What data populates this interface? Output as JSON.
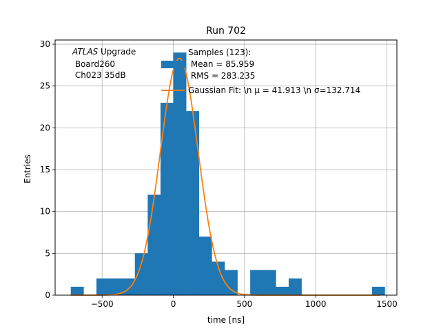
{
  "chart_data": {
    "type": "bar",
    "title": "Run 702",
    "xlabel": "time [ns]",
    "ylabel": "Entries",
    "xlim": [
      -830,
      1570
    ],
    "ylim": [
      0,
      30.5
    ],
    "xticks": [
      -500,
      0,
      500,
      1000,
      1500
    ],
    "yticks": [
      0,
      5,
      10,
      15,
      20,
      25,
      30
    ],
    "xtick_labels": [
      "−500",
      "0",
      "500",
      "1000",
      "1500"
    ],
    "ytick_labels": [
      "0",
      "5",
      "10",
      "15",
      "20",
      "25",
      "30"
    ],
    "grid": true,
    "bin_edges": [
      -720,
      -630,
      -540,
      -450,
      -360,
      -270,
      -180,
      -90,
      0,
      90,
      180,
      270,
      360,
      450,
      540,
      630,
      720,
      810,
      900,
      990,
      1080,
      1170,
      1260,
      1350,
      1440
    ],
    "hist_values": [
      1,
      0,
      2,
      2,
      2,
      5,
      12,
      23,
      29,
      22,
      7,
      4,
      3,
      0,
      3,
      3,
      1,
      2,
      0,
      0,
      0,
      0,
      0,
      0
    ],
    "extra_bins": [
      [
        1395,
        1485,
        1
      ]
    ],
    "fit_curve": {
      "amplitude": 28.3,
      "mean": 41.913,
      "sigma": 132.714
    },
    "legend": {
      "placement": "top-right",
      "hist_label_lines": [
        "Samples (123):",
        " Mean = 85.959",
        " RMS = 283.235"
      ],
      "fit_label": "Gaussian Fit: \\n μ = 41.913 \\n σ=132.714"
    },
    "annotation_lines": [
      "ATLAS Upgrade",
      " Board260",
      " Ch023 35dB"
    ],
    "annotation_italic": "ATLAS",
    "colors": {
      "hist": "#1f77b4",
      "fit": "#ff7f0e",
      "grid": "#b0b0b0",
      "axes": "#000000"
    }
  }
}
